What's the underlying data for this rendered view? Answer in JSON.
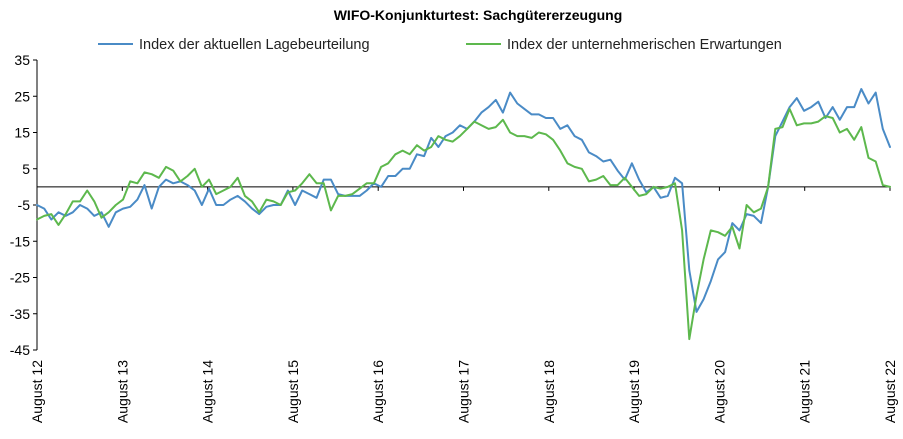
{
  "chart_data": {
    "type": "line",
    "title": "WIFO-Konjunkturtest: Sachgütererzeugung",
    "xlabel": "",
    "ylabel": "",
    "ylim": [
      -45,
      35
    ],
    "yticks": [
      35,
      25,
      15,
      5,
      -5,
      -15,
      -25,
      -35,
      -45
    ],
    "xticks": [
      "August 12",
      "August 13",
      "August 14",
      "August 15",
      "August 16",
      "August 17",
      "August 18",
      "August 19",
      "August 20",
      "August 21",
      "August 22"
    ],
    "grid": false,
    "legend": "top",
    "zero_line": true,
    "series": [
      {
        "name": "Index der aktuellen Lagebeurteilung",
        "color": "#4a8bc6",
        "values": [
          -5,
          -6,
          -9,
          -7,
          -8,
          -7,
          -5,
          -6,
          -8,
          -7,
          -11,
          -7,
          -6,
          -5.5,
          -3.5,
          0.5,
          -6,
          0,
          2,
          1,
          1.5,
          0.5,
          -1,
          -5,
          -0.5,
          -5,
          -5,
          -3.5,
          -2.5,
          -4,
          -6,
          -7.5,
          -5.5,
          -5,
          -5,
          -1,
          -5,
          -1,
          -2,
          -3,
          2,
          2,
          -2,
          -2.5,
          -2.5,
          -2.5,
          -1,
          1,
          0,
          3,
          3,
          5,
          5,
          9,
          8.5,
          13.5,
          11,
          14,
          15,
          17,
          16,
          18,
          20.5,
          22,
          24,
          20.5,
          26,
          23,
          21.5,
          20,
          20,
          19,
          19,
          16,
          17,
          14,
          13,
          9.5,
          8.5,
          7,
          7.5,
          4.5,
          2,
          6.5,
          2,
          -1.5,
          0,
          -3,
          -2.5,
          2.5,
          1,
          -23,
          -34.5,
          -31,
          -26,
          -20,
          -18,
          -10,
          -12,
          -7.5,
          -8,
          -10,
          0,
          14,
          18,
          22,
          24.5,
          21,
          22,
          23.5,
          19,
          22,
          18.5,
          22,
          22,
          27,
          23,
          26,
          16,
          11
        ]
      },
      {
        "name": "Index der unternehmerischen Erwartungen",
        "color": "#5db84d",
        "values": [
          -9,
          -8,
          -7.5,
          -10.5,
          -7.5,
          -4,
          -4,
          -1,
          -4,
          -8.5,
          -7,
          -5,
          -3.5,
          1.5,
          1,
          4,
          3.5,
          2.5,
          5.5,
          4.5,
          1.5,
          3,
          5,
          0,
          2,
          -2,
          -1,
          0,
          2.5,
          -2.5,
          -4,
          -7,
          -3.5,
          -4,
          -5,
          -1.5,
          -1,
          1,
          3.5,
          1,
          1,
          -6.5,
          -2.5,
          -2.5,
          -2,
          -0.5,
          1,
          1,
          5.5,
          6.5,
          9,
          10,
          9,
          11.5,
          10,
          11,
          14,
          13,
          12.5,
          14,
          16,
          18,
          17,
          16,
          16.5,
          18.5,
          15,
          14,
          14,
          13.5,
          15,
          14.5,
          13,
          10,
          6.5,
          5.5,
          5,
          1.5,
          2,
          3,
          0.5,
          0.5,
          2.5,
          0,
          -2.5,
          -2,
          0,
          -0.5,
          0,
          1,
          -12,
          -42,
          -30,
          -20,
          -12,
          -12.5,
          -13.5,
          -11,
          -17,
          -5,
          -7,
          -6,
          0,
          16,
          16.5,
          21.5,
          17,
          17.5,
          17.5,
          18,
          19.5,
          19,
          15,
          16,
          13,
          16.5,
          8,
          7,
          0.5,
          0
        ]
      }
    ]
  }
}
